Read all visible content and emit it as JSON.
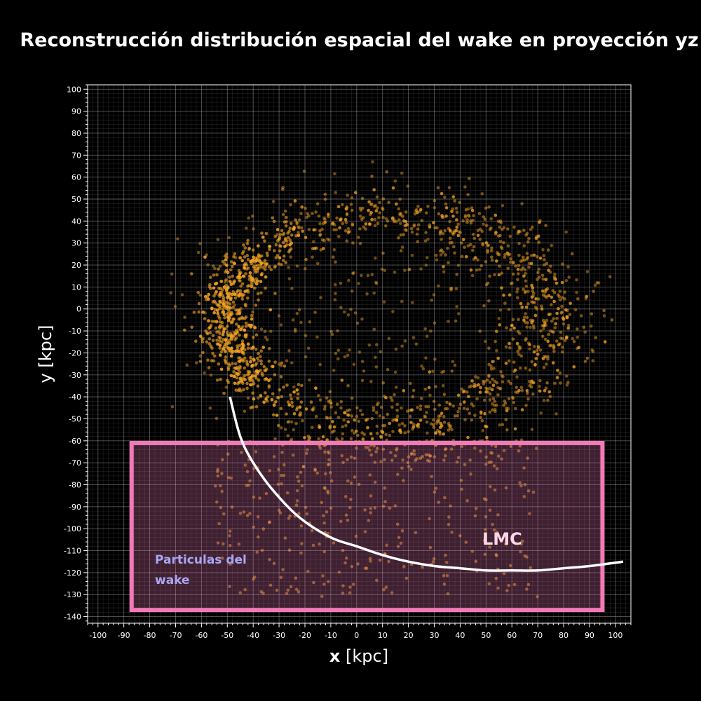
{
  "chart_data": {
    "type": "scatter",
    "title": "Reconstrucción distribución espacial del wake en proyección yz",
    "xlabel_bold": "x",
    "xlabel_unit": "[kpc]",
    "ylabel": "y [kpc]",
    "xlim": [
      -104,
      106
    ],
    "ylim": [
      -143,
      102
    ],
    "x_ticks": [
      -100,
      -90,
      -80,
      -70,
      -60,
      -50,
      -40,
      -30,
      -20,
      -10,
      0,
      10,
      20,
      30,
      40,
      50,
      60,
      70,
      80,
      90,
      100
    ],
    "y_ticks": [
      100,
      90,
      80,
      70,
      60,
      50,
      40,
      30,
      20,
      10,
      0,
      -10,
      -20,
      -30,
      -40,
      -50,
      -60,
      -70,
      -80,
      -90,
      -100,
      -110,
      -120,
      -130,
      -140
    ],
    "grid": true,
    "point_color": "#f5a623",
    "structure": {
      "ring": {
        "center": [
          12,
          -5
        ],
        "radius_x": 62,
        "radius_y": 47,
        "particle_count": 1900
      },
      "outer_halo_count": 350,
      "wake_region_count": 360
    },
    "wake_box": {
      "x": [
        -87,
        95
      ],
      "y": [
        -137,
        -61
      ],
      "color": "#f27ab8"
    },
    "lmc_orbit": {
      "color": "#ffffff",
      "points": [
        [
          -49,
          -40
        ],
        [
          -45,
          -58
        ],
        [
          -40,
          -70
        ],
        [
          -32,
          -83
        ],
        [
          -22,
          -95
        ],
        [
          -10,
          -104
        ],
        [
          0,
          -108
        ],
        [
          10,
          -112
        ],
        [
          20,
          -115
        ],
        [
          30,
          -117
        ],
        [
          40,
          -118
        ],
        [
          50,
          -119
        ],
        [
          60,
          -119
        ],
        [
          70,
          -119
        ],
        [
          80,
          -118
        ],
        [
          90,
          -117
        ],
        [
          103,
          -115
        ]
      ]
    },
    "annotations": [
      {
        "text_line1": "Particulas del",
        "text_line2": "wake",
        "color": "#a9a6f5"
      },
      {
        "text": "LMC",
        "color": "#ffd6e6"
      }
    ]
  }
}
